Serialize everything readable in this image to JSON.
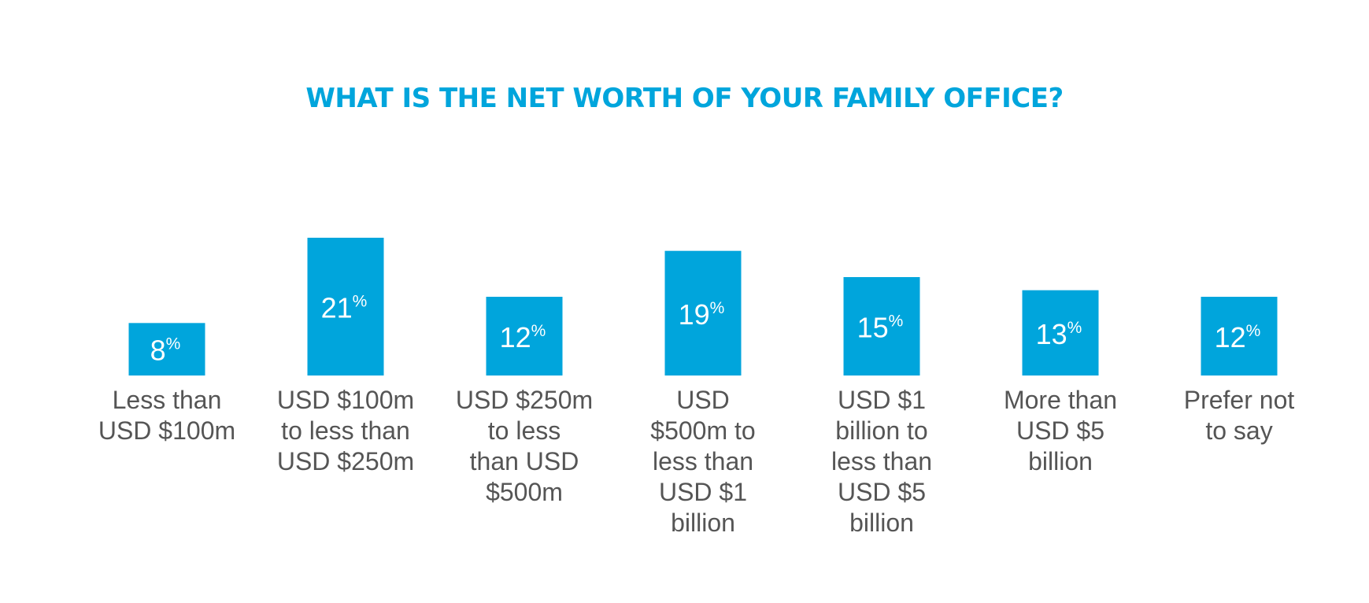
{
  "colors": {
    "accent": "#00a5dc",
    "bar_text": "#ffffff",
    "label_text": "#555555"
  },
  "chart_data": {
    "type": "bar",
    "title": "WHAT IS THE NET WORTH OF YOUR FAMILY OFFICE?",
    "unit": "%",
    "categories": [
      [
        "Less than",
        "USD $100m"
      ],
      [
        "USD $100m",
        "to less than",
        "USD $250m"
      ],
      [
        "USD $250m",
        "to less",
        "than USD",
        "$500m"
      ],
      [
        "USD",
        "$500m to",
        "less than",
        "USD $1",
        "billion"
      ],
      [
        "USD $1",
        "billion to",
        "less than",
        "USD $5",
        "billion"
      ],
      [
        "More than",
        "USD $5",
        "billion"
      ],
      [
        "Prefer not",
        "to say"
      ]
    ],
    "values": [
      8,
      21,
      12,
      19,
      15,
      13,
      12
    ],
    "ylim": [
      0,
      21
    ],
    "grid": false,
    "legend": "none"
  }
}
